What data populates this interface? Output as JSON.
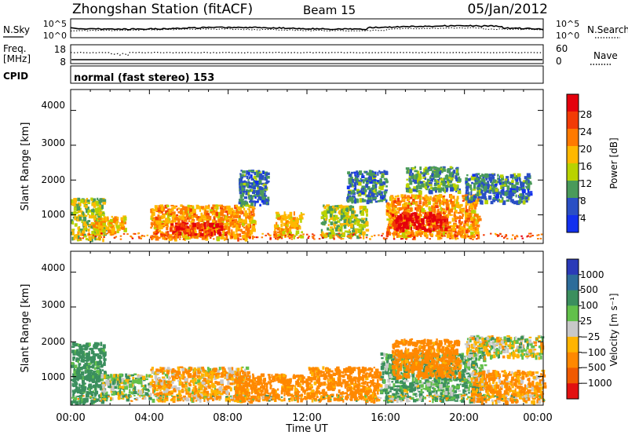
{
  "header": {
    "station": "Zhongshan Station (fitACF)",
    "beam": "Beam 15",
    "date": "05/Jan/2012"
  },
  "noise_panel": {
    "left_label": "N.Sky",
    "left_ticks": [
      "10^5",
      "10^0"
    ],
    "right_ticks": [
      "10^5",
      "10^0"
    ],
    "right_label": "N.Search"
  },
  "freq_panel": {
    "left_label_1": "Freq.",
    "left_label_2": "[MHz]",
    "left_ticks": [
      "18",
      "8"
    ],
    "right_ticks": [
      "60",
      "0"
    ],
    "right_label": "Nave"
  },
  "cpid_panel": {
    "label": "CPID",
    "text": "normal (fast stereo) 153"
  },
  "power_colorbar": {
    "title": "Power [dB]",
    "ticks": [
      "28",
      "24",
      "20",
      "16",
      "12",
      "8",
      "4"
    ],
    "colors": [
      "#e4000c",
      "#f23b06",
      "#ff7a00",
      "#ffb800",
      "#b9d300",
      "#4a9a5a",
      "#2a4fc4",
      "#1230ee"
    ]
  },
  "velocity_colorbar": {
    "title": "Velocity [m s⁻¹]",
    "ticks": [
      "1000",
      "500",
      "100",
      "25",
      "−25",
      "−100",
      "−500",
      "−1000"
    ],
    "colors": [
      "#2a3ab8",
      "#2d6c9a",
      "#3b8f5e",
      "#62c04a",
      "#c8c8c8",
      "#ffb400",
      "#ff8800",
      "#f05a00",
      "#e21010"
    ]
  },
  "axes": {
    "ylabel": "Slant Range [km]",
    "xlabel": "Time UT",
    "y_ticks": [
      "4000",
      "3000",
      "2000",
      "1000"
    ],
    "x_ticks": [
      "00:00",
      "04:00",
      "08:00",
      "12:00",
      "16:00",
      "20:00",
      "00:00"
    ]
  },
  "chart_data": [
    {
      "type": "heatmap",
      "title": "Power [dB]",
      "xlabel": "",
      "ylabel": "Slant Range [km]",
      "xlim": [
        0,
        24
      ],
      "ylim": [
        180,
        4600
      ],
      "x_ticks": [
        "00:00",
        "04:00",
        "08:00",
        "12:00",
        "16:00",
        "20:00",
        "00:00"
      ],
      "y_ticks": [
        1000,
        2000,
        3000,
        4000
      ],
      "colorbar_ticks": [
        4,
        8,
        12,
        16,
        20,
        24,
        28
      ],
      "scatter_regions": [
        {
          "t": [
            0.0,
            1.7
          ],
          "range_km": [
            300,
            1500
          ],
          "value_db": 12
        },
        {
          "t": [
            1.0,
            2.7
          ],
          "range_km": [
            500,
            1000
          ],
          "value_db": 16
        },
        {
          "t": [
            4.0,
            9.3
          ],
          "range_km": [
            350,
            1300
          ],
          "value_db": 18
        },
        {
          "t": [
            5.0,
            7.7
          ],
          "range_km": [
            450,
            800
          ],
          "value_db": 26
        },
        {
          "t": [
            8.5,
            10.0
          ],
          "range_km": [
            1300,
            2300
          ],
          "value_db": 6
        },
        {
          "t": [
            10.3,
            11.7
          ],
          "range_km": [
            400,
            1100
          ],
          "value_db": 16
        },
        {
          "t": [
            12.7,
            15.0
          ],
          "range_km": [
            400,
            1300
          ],
          "value_db": 12
        },
        {
          "t": [
            14.0,
            16.0
          ],
          "range_km": [
            1400,
            2300
          ],
          "value_db": 6
        },
        {
          "t": [
            16.0,
            20.7
          ],
          "range_km": [
            400,
            1600
          ],
          "value_db": 18
        },
        {
          "t": [
            16.3,
            19.0
          ],
          "range_km": [
            600,
            1100
          ],
          "value_db": 28
        },
        {
          "t": [
            17.0,
            19.7
          ],
          "range_km": [
            1700,
            2400
          ],
          "value_db": 8
        },
        {
          "t": [
            20.0,
            23.3
          ],
          "range_km": [
            1400,
            2200
          ],
          "value_db": 6
        }
      ]
    },
    {
      "type": "heatmap",
      "title": "Velocity [m s⁻¹]",
      "xlabel": "Time UT",
      "ylabel": "Slant Range [km]",
      "xlim": [
        0,
        24
      ],
      "ylim": [
        180,
        4600
      ],
      "x_ticks": [
        "00:00",
        "04:00",
        "08:00",
        "12:00",
        "16:00",
        "20:00",
        "00:00"
      ],
      "y_ticks": [
        1000,
        2000,
        3000,
        4000
      ],
      "colorbar_ticks": [
        1000,
        500,
        100,
        25,
        -25,
        -100,
        -500,
        -1000
      ],
      "scatter_regions": [
        {
          "t": [
            0.0,
            1.7
          ],
          "range_km": [
            300,
            2000
          ],
          "value_ms": 200
        },
        {
          "t": [
            1.5,
            4.0
          ],
          "range_km": [
            400,
            1100
          ],
          "value_ms": 50
        },
        {
          "t": [
            4.0,
            9.0
          ],
          "range_km": [
            350,
            1300
          ],
          "value_ms": -80
        },
        {
          "t": [
            8.3,
            12.0
          ],
          "range_km": [
            350,
            1100
          ],
          "value_ms": -200
        },
        {
          "t": [
            12.0,
            15.7
          ],
          "range_km": [
            350,
            1300
          ],
          "value_ms": -200
        },
        {
          "t": [
            15.7,
            21.0
          ],
          "range_km": [
            350,
            1700
          ],
          "value_ms": 100
        },
        {
          "t": [
            16.3,
            19.7
          ],
          "range_km": [
            1000,
            2100
          ],
          "value_ms": -200
        },
        {
          "t": [
            20.0,
            24.0
          ],
          "range_km": [
            1600,
            2200
          ],
          "value_ms": 0
        },
        {
          "t": [
            20.3,
            24.0
          ],
          "range_km": [
            300,
            1200
          ],
          "value_ms": -120
        }
      ]
    }
  ]
}
